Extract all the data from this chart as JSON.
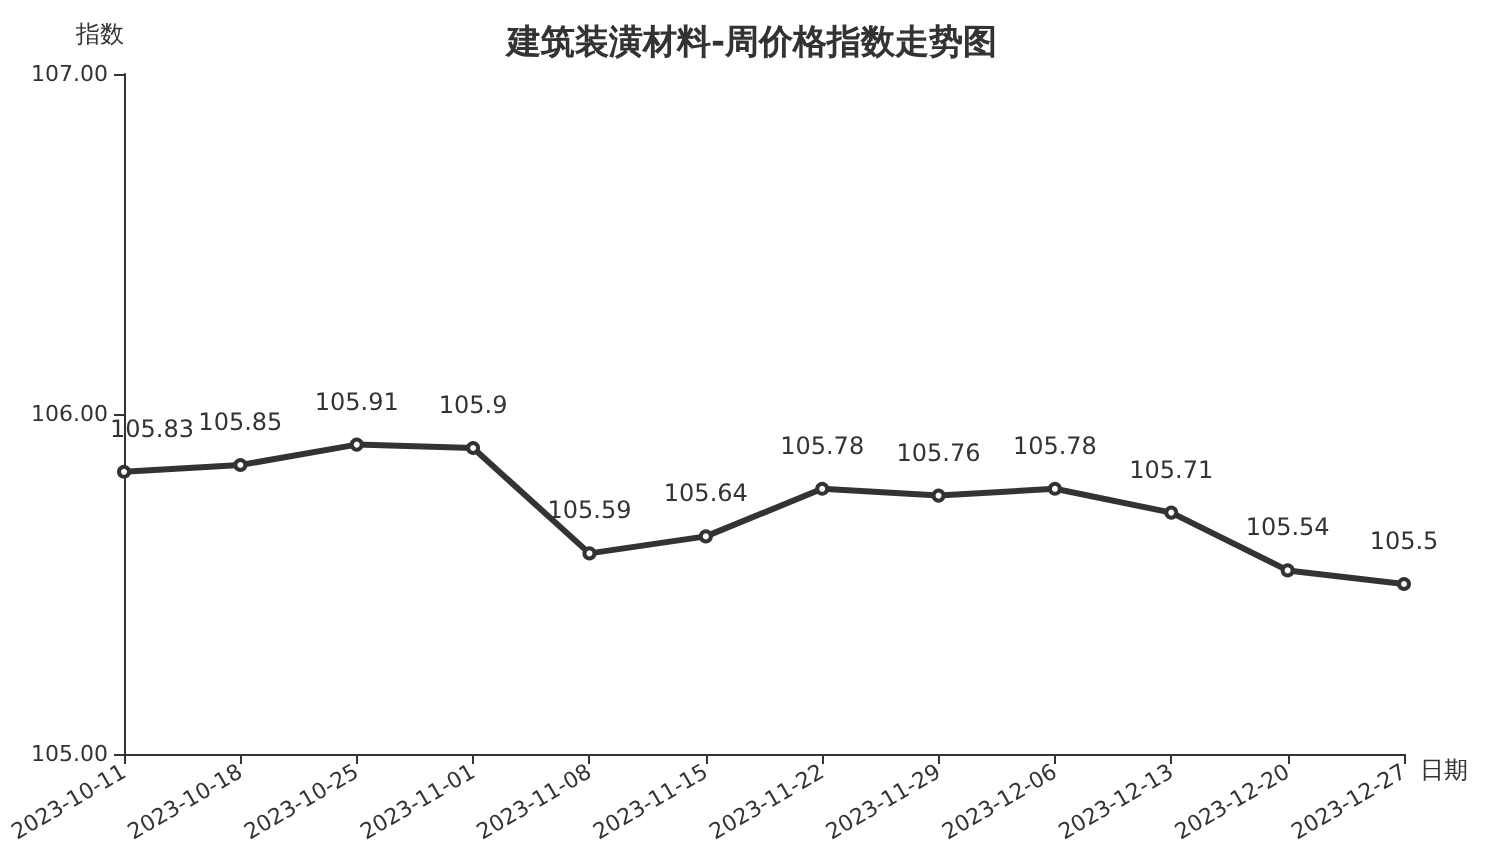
{
  "chart_data": {
    "type": "line",
    "title": "建筑装潢材料-周价格指数走势图",
    "xlabel": "日期",
    "ylabel": "指数",
    "categories": [
      "2023-10-11",
      "2023-10-18",
      "2023-10-25",
      "2023-11-01",
      "2023-11-08",
      "2023-11-15",
      "2023-11-22",
      "2023-11-29",
      "2023-12-06",
      "2023-12-13",
      "2023-12-20",
      "2023-12-27"
    ],
    "series": [
      {
        "color": "#333333",
        "values": [
          105.83,
          105.85,
          105.91,
          105.9,
          105.59,
          105.64,
          105.78,
          105.76,
          105.78,
          105.71,
          105.54,
          105.5
        ]
      }
    ],
    "ylim": [
      105,
      107
    ],
    "yticks": [
      {
        "value": 105,
        "label": "105.00"
      },
      {
        "value": 106,
        "label": "106.00"
      },
      {
        "value": 107,
        "label": "107.00"
      }
    ],
    "grid": false,
    "marker": "circle",
    "line_style": "solid",
    "data_labels": true
  }
}
